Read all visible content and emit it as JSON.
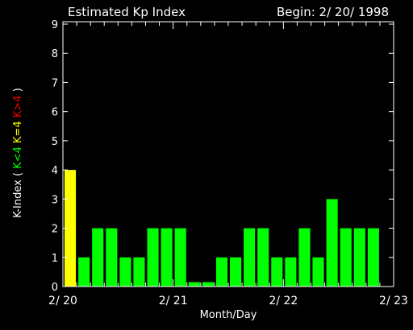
{
  "chart_data": {
    "type": "bar",
    "title": "Estimated Kp Index",
    "subtitle": "Begin: 2/ 20/ 1998",
    "xlabel": "Month/Day",
    "ylabel": {
      "prefix": "K-Index ( ",
      "parts": [
        {
          "text": "K<4",
          "color": "#00ff00"
        },
        {
          "text": "K=4",
          "color": "#ffff00"
        },
        {
          "text": "K>4",
          "color": "#ff0000"
        }
      ],
      "suffix": " )"
    },
    "ylim": [
      0,
      9
    ],
    "yticks": [
      "0",
      "1",
      "2",
      "3",
      "4",
      "5",
      "6",
      "7",
      "8",
      "9"
    ],
    "x_interval_hours": 3,
    "xticks": [
      {
        "label": "2/ 20",
        "index": 0
      },
      {
        "label": "2/ 21",
        "index": 8
      },
      {
        "label": "2/ 22",
        "index": 16
      },
      {
        "label": "2/ 23",
        "index": 24
      }
    ],
    "values": [
      4,
      1,
      2,
      2,
      1,
      1,
      2,
      2,
      2,
      0.15,
      0.15,
      1,
      1,
      2,
      2,
      1,
      1,
      2,
      1,
      3,
      2,
      2,
      2
    ],
    "colors": {
      "low": "#00ff00",
      "equal": "#ffff00",
      "high": "#ff0000",
      "axis": "#ffffff",
      "background": "#000000"
    }
  }
}
